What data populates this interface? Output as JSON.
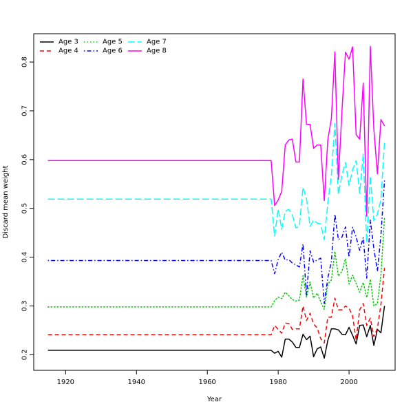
{
  "chart_data": {
    "type": "line",
    "title": "",
    "xlabel": "Year",
    "ylabel": "Discard mean weight",
    "xlim": [
      1911,
      2013
    ],
    "ylim": [
      0.168,
      0.858
    ],
    "xticks": [
      1920,
      1940,
      1960,
      1980,
      2000
    ],
    "yticks": [
      0.2,
      0.3,
      0.4,
      0.5,
      0.6,
      0.7,
      0.8
    ],
    "grid": false,
    "legend_position": "top-left",
    "x": [
      1915,
      1978,
      1979,
      1980,
      1981,
      1982,
      1983,
      1984,
      1985,
      1986,
      1987,
      1988,
      1989,
      1990,
      1991,
      1992,
      1993,
      1994,
      1995,
      1996,
      1997,
      1998,
      1999,
      2000,
      2001,
      2002,
      2003,
      2004,
      2005,
      2006,
      2007,
      2008,
      2009,
      2010
    ],
    "series": [
      {
        "name": "Age 3",
        "color": "#000000",
        "dash": "solid",
        "values": [
          0.209,
          0.209,
          0.203,
          0.207,
          0.195,
          0.232,
          0.232,
          0.226,
          0.215,
          0.215,
          0.242,
          0.231,
          0.238,
          0.196,
          0.212,
          0.216,
          0.193,
          0.229,
          0.253,
          0.253,
          0.251,
          0.242,
          0.241,
          0.256,
          0.24,
          0.222,
          0.26,
          0.261,
          0.237,
          0.26,
          0.219,
          0.252,
          0.245,
          0.3
        ]
      },
      {
        "name": "Age 4",
        "color": "#ff0000",
        "dash": "dashed",
        "values": [
          0.241,
          0.241,
          0.26,
          0.252,
          0.244,
          0.265,
          0.264,
          0.252,
          0.253,
          0.253,
          0.3,
          0.27,
          0.285,
          0.263,
          0.255,
          0.233,
          0.224,
          0.277,
          0.277,
          0.316,
          0.292,
          0.292,
          0.3,
          0.295,
          0.28,
          0.23,
          0.292,
          0.305,
          0.26,
          0.275,
          0.237,
          0.254,
          0.303,
          0.378
        ]
      },
      {
        "name": "Age 5",
        "color": "#00cd00",
        "dash": "dotted",
        "values": [
          0.298,
          0.298,
          0.311,
          0.318,
          0.315,
          0.328,
          0.321,
          0.313,
          0.31,
          0.312,
          0.362,
          0.318,
          0.349,
          0.316,
          0.326,
          0.309,
          0.293,
          0.345,
          0.353,
          0.412,
          0.361,
          0.371,
          0.397,
          0.345,
          0.363,
          0.346,
          0.328,
          0.348,
          0.317,
          0.355,
          0.3,
          0.305,
          0.364,
          0.48
        ]
      },
      {
        "name": "Age 6",
        "color": "#0000ff",
        "dash": "dashdot",
        "values": [
          0.393,
          0.393,
          0.366,
          0.395,
          0.41,
          0.394,
          0.395,
          0.388,
          0.384,
          0.38,
          0.427,
          0.322,
          0.413,
          0.39,
          0.394,
          0.398,
          0.305,
          0.357,
          0.391,
          0.488,
          0.436,
          0.441,
          0.462,
          0.4,
          0.461,
          0.441,
          0.414,
          0.44,
          0.357,
          0.476,
          0.418,
          0.371,
          0.445,
          0.557
        ]
      },
      {
        "name": "Age 7",
        "color": "#00ffff",
        "dash": "longdash",
        "values": [
          0.519,
          0.519,
          0.443,
          0.499,
          0.457,
          0.494,
          0.498,
          0.487,
          0.46,
          0.464,
          0.543,
          0.52,
          0.463,
          0.476,
          0.47,
          0.468,
          0.436,
          0.51,
          0.568,
          0.674,
          0.529,
          0.568,
          0.594,
          0.547,
          0.579,
          0.598,
          0.531,
          0.611,
          0.429,
          0.566,
          0.475,
          0.488,
          0.518,
          0.636
        ]
      },
      {
        "name": "Age 8",
        "color": "#ff00ff",
        "dash": "solid",
        "values": [
          0.598,
          0.598,
          0.506,
          0.517,
          0.535,
          0.63,
          0.64,
          0.642,
          0.595,
          0.595,
          0.765,
          0.672,
          0.672,
          0.623,
          0.63,
          0.63,
          0.516,
          0.64,
          0.684,
          0.821,
          0.559,
          0.7,
          0.82,
          0.806,
          0.831,
          0.651,
          0.642,
          0.757,
          0.484,
          0.832,
          0.662,
          0.571,
          0.682,
          0.669
        ]
      }
    ]
  }
}
